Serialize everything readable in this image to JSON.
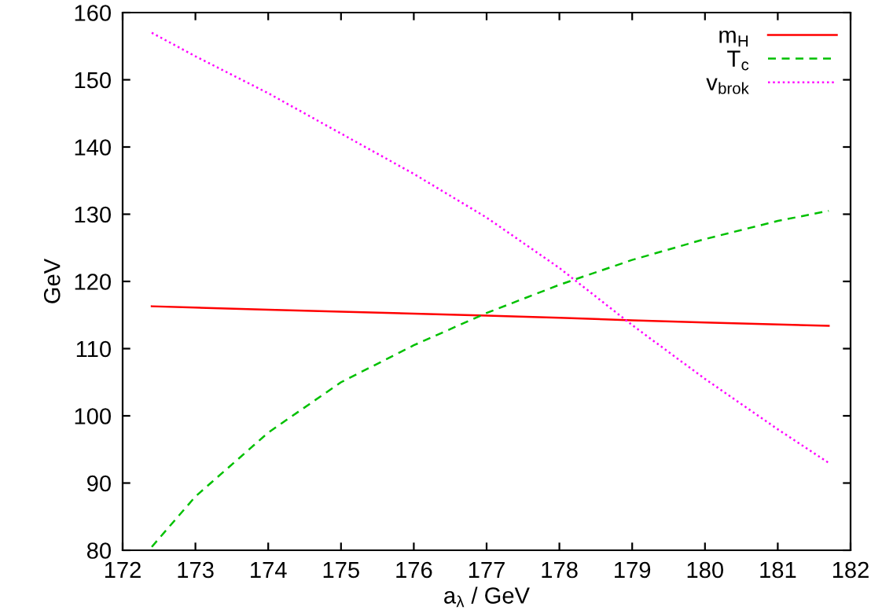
{
  "chart_data": {
    "type": "line",
    "xlabel": "a$_{λ}$ / GeV",
    "ylabel": "GeV",
    "xlim": [
      172,
      182
    ],
    "ylim": [
      80,
      160
    ],
    "xticks": [
      172,
      173,
      174,
      175,
      176,
      177,
      178,
      179,
      180,
      181,
      182
    ],
    "yticks": [
      80,
      90,
      100,
      110,
      120,
      130,
      140,
      150,
      160
    ],
    "grid": false,
    "legend": "top right",
    "marker": "none",
    "series": [
      {
        "name": "m$_{H}$",
        "color": "#ff0000",
        "line_style": "solid",
        "x": [
          172.4,
          173,
          174,
          175,
          176,
          177,
          178,
          179,
          180,
          181,
          181.7
        ],
        "values": [
          116.3,
          116.1,
          115.8,
          115.5,
          115.2,
          114.9,
          114.6,
          114.2,
          113.9,
          113.6,
          113.4
        ]
      },
      {
        "name": "T$_{c}$",
        "color": "#00c000",
        "line_style": "dashed",
        "x": [
          172.4,
          173,
          174,
          175,
          176,
          177,
          178,
          179,
          180,
          181,
          181.7
        ],
        "values": [
          80.5,
          88,
          97.5,
          105,
          110.5,
          115.3,
          119.5,
          123.2,
          126.3,
          129,
          130.5
        ]
      },
      {
        "name": "v$_{brok}$",
        "color": "#ff00ff",
        "line_style": "dotted",
        "x": [
          172.4,
          173,
          174,
          175,
          176,
          177,
          178,
          179,
          180,
          181,
          181.7
        ],
        "values": [
          157,
          153.5,
          148,
          142,
          136,
          129.5,
          122,
          113.5,
          105.5,
          98,
          93
        ]
      }
    ]
  }
}
